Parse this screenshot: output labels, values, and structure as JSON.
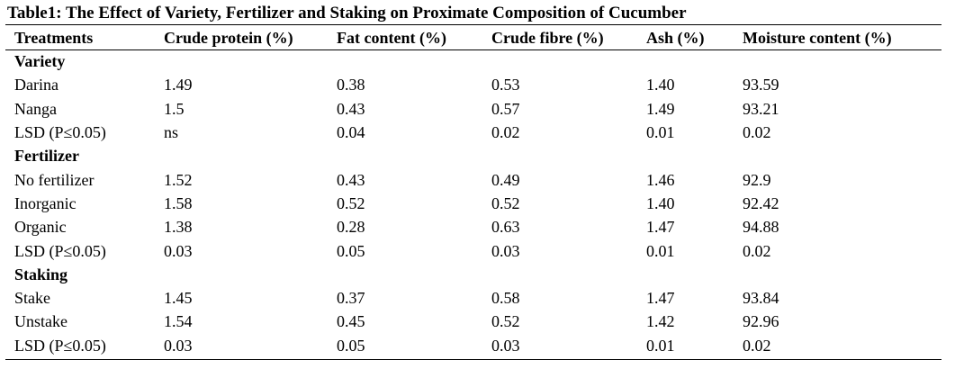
{
  "table": {
    "caption": "Table1: The Effect of Variety, Fertilizer and Staking on Proximate Composition of Cucumber",
    "columns": [
      "Treatments",
      "Crude protein (%)",
      "Fat content (%)",
      "Crude fibre (%)",
      "Ash (%)",
      "Moisture content (%)"
    ],
    "groups": [
      {
        "label": "Variety",
        "rows": [
          [
            "Darina",
            "1.49",
            "0.38",
            "0.53",
            "1.40",
            "93.59"
          ],
          [
            "Nanga",
            "1.5",
            "0.43",
            "0.57",
            "1.49",
            "93.21"
          ],
          [
            "LSD (P≤0.05)",
            "ns",
            "0.04",
            "0.02",
            "0.01",
            "0.02"
          ]
        ]
      },
      {
        "label": "Fertilizer",
        "rows": [
          [
            "No fertilizer",
            "1.52",
            "0.43",
            "0.49",
            "1.46",
            "92.9"
          ],
          [
            "Inorganic",
            "1.58",
            "0.52",
            "0.52",
            "1.40",
            "92.42"
          ],
          [
            "Organic",
            "1.38",
            "0.28",
            "0.63",
            "1.47",
            "94.88"
          ],
          [
            "LSD (P≤0.05)",
            "0.03",
            "0.05",
            "0.03",
            "0.01",
            "0.02"
          ]
        ]
      },
      {
        "label": "Staking",
        "rows": [
          [
            "Stake",
            "1.45",
            "0.37",
            "0.58",
            "1.47",
            "93.84"
          ],
          [
            "Unstake",
            "1.54",
            "0.45",
            "0.52",
            "1.42",
            "92.96"
          ],
          [
            "LSD (P≤0.05)",
            "0.03",
            "0.05",
            "0.03",
            "0.01",
            "0.02"
          ]
        ]
      }
    ]
  }
}
